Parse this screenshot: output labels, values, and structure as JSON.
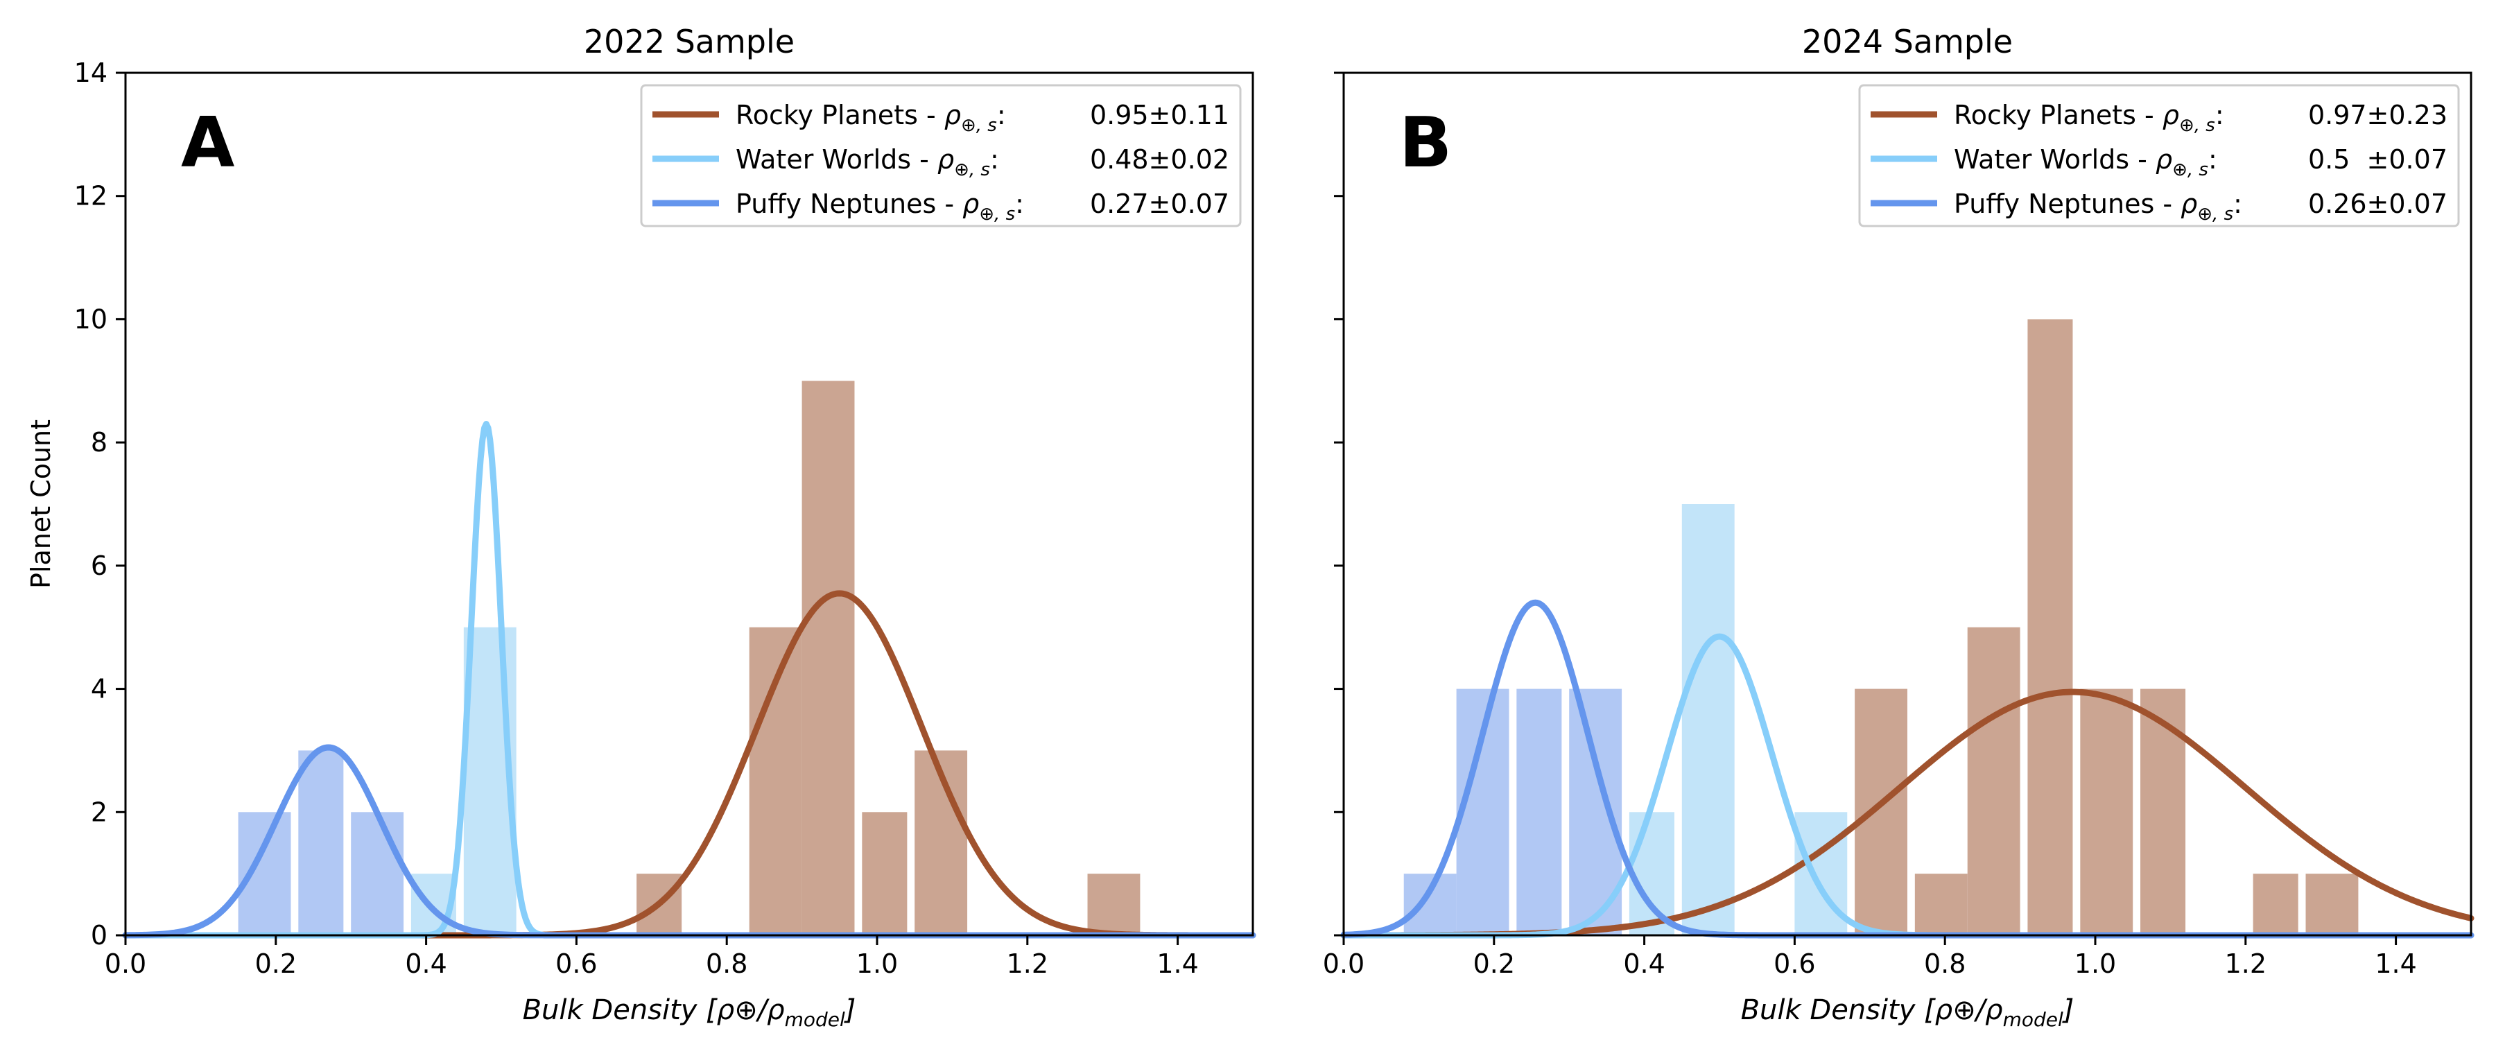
{
  "figure": {
    "ylabel": "Planet Count",
    "xlabel_main": "Bulk Density [",
    "xlabel_math": "ρ⊕/ρ",
    "xlabel_sub": "model",
    "xlabel_end": "]"
  },
  "colors": {
    "rocky_hist": "#cba592",
    "rocky_line": "#a0522d",
    "water_hist": "#c2e4f9",
    "water_line": "#87cefa",
    "puffy_hist": "#b1c8f4",
    "puffy_line": "#6495ed"
  },
  "chart_data": [
    {
      "type": "bar",
      "title": "2022 Sample",
      "panel_label": "A",
      "xlabel": "Bulk Density [ρ⊕/ρmodel]",
      "ylabel": "Planet Count",
      "xlim": [
        0.0,
        1.5
      ],
      "ylim": [
        0,
        14
      ],
      "xticks": [
        "0.0",
        "0.2",
        "0.4",
        "0.6",
        "0.8",
        "1.0",
        "1.2",
        "1.4"
      ],
      "yticks": [
        "0",
        "2",
        "4",
        "6",
        "8",
        "10",
        "12",
        "14"
      ],
      "legend_position": "top-right",
      "series": [
        {
          "name": "Rocky Planets",
          "legend_value": "0.95±0.11",
          "mean": 0.95,
          "sd": 0.11,
          "peak": 5.55,
          "bins": [
            {
              "x0": 0.68,
              "x1": 0.74,
              "count": 1
            },
            {
              "x0": 0.83,
              "x1": 0.9,
              "count": 5
            },
            {
              "x0": 0.9,
              "x1": 0.97,
              "count": 9
            },
            {
              "x0": 0.98,
              "x1": 1.04,
              "count": 2
            },
            {
              "x0": 1.05,
              "x1": 1.12,
              "count": 3
            },
            {
              "x0": 1.28,
              "x1": 1.35,
              "count": 1
            }
          ]
        },
        {
          "name": "Water Worlds",
          "legend_value": "0.48±0.02",
          "mean": 0.48,
          "sd": 0.02,
          "peak": 8.3,
          "bins": [
            {
              "x0": 0.38,
              "x1": 0.44,
              "count": 1
            },
            {
              "x0": 0.45,
              "x1": 0.52,
              "count": 5
            }
          ]
        },
        {
          "name": "Puffy Neptunes",
          "legend_value": "0.27±0.07",
          "mean": 0.27,
          "sd": 0.07,
          "peak": 3.05,
          "bins": [
            {
              "x0": 0.15,
              "x1": 0.22,
              "count": 2
            },
            {
              "x0": 0.23,
              "x1": 0.29,
              "count": 3
            },
            {
              "x0": 0.3,
              "x1": 0.37,
              "count": 2
            }
          ]
        }
      ]
    },
    {
      "type": "bar",
      "title": "2024 Sample",
      "panel_label": "B",
      "xlabel": "Bulk Density [ρ⊕/ρmodel]",
      "xlim": [
        0.0,
        1.5
      ],
      "ylim": [
        0,
        14
      ],
      "xticks": [
        "0.0",
        "0.2",
        "0.4",
        "0.6",
        "0.8",
        "1.0",
        "1.2",
        "1.4"
      ],
      "legend_position": "top-right",
      "series": [
        {
          "name": "Rocky Planets",
          "legend_value": "0.97±0.23",
          "mean": 0.97,
          "sd": 0.23,
          "peak": 3.95,
          "bins": [
            {
              "x0": 0.68,
              "x1": 0.75,
              "count": 4
            },
            {
              "x0": 0.76,
              "x1": 0.83,
              "count": 1
            },
            {
              "x0": 0.83,
              "x1": 0.9,
              "count": 5
            },
            {
              "x0": 0.91,
              "x1": 0.97,
              "count": 10
            },
            {
              "x0": 0.98,
              "x1": 1.05,
              "count": 4
            },
            {
              "x0": 1.06,
              "x1": 1.12,
              "count": 4
            },
            {
              "x0": 1.21,
              "x1": 1.27,
              "count": 1
            },
            {
              "x0": 1.28,
              "x1": 1.35,
              "count": 1
            }
          ]
        },
        {
          "name": "Water Worlds",
          "legend_value": "0.5  ±0.07",
          "mean": 0.5,
          "sd": 0.07,
          "peak": 4.85,
          "bins": [
            {
              "x0": 0.38,
              "x1": 0.44,
              "count": 2
            },
            {
              "x0": 0.45,
              "x1": 0.52,
              "count": 7
            },
            {
              "x0": 0.6,
              "x1": 0.67,
              "count": 2
            }
          ]
        },
        {
          "name": "Puffy Neptunes",
          "legend_value": "0.26±0.07",
          "mean": 0.255,
          "sd": 0.07,
          "peak": 5.4,
          "bins": [
            {
              "x0": 0.08,
              "x1": 0.15,
              "count": 1
            },
            {
              "x0": 0.15,
              "x1": 0.22,
              "count": 4
            },
            {
              "x0": 0.23,
              "x1": 0.29,
              "count": 4
            },
            {
              "x0": 0.3,
              "x1": 0.37,
              "count": 4
            }
          ]
        }
      ]
    }
  ]
}
